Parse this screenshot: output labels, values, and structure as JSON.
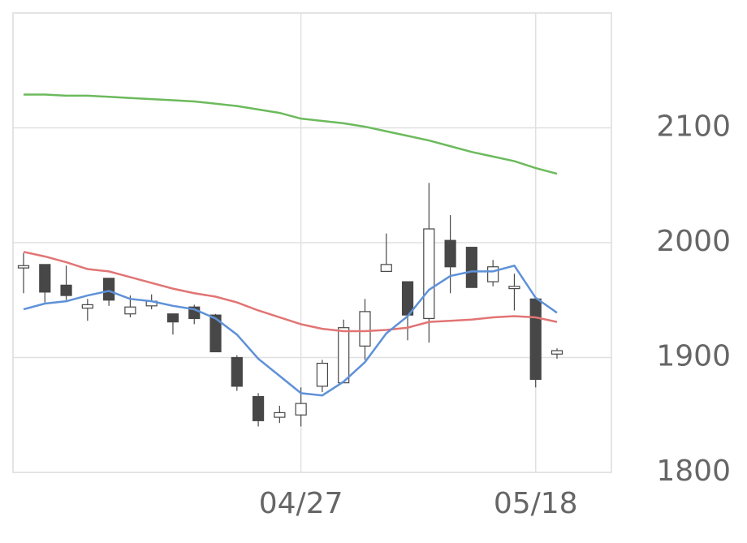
{
  "chart_data": {
    "type": "candlestick",
    "categories": [
      null,
      null,
      null,
      null,
      null,
      null,
      null,
      null,
      null,
      null,
      null,
      null,
      null,
      "04/27",
      null,
      null,
      null,
      null,
      null,
      null,
      null,
      null,
      null,
      null,
      "05/18",
      null
    ],
    "open": [
      1978,
      1981,
      1963,
      1943,
      1969,
      1938,
      1945,
      1938,
      1944,
      1937,
      1900,
      1866,
      1848,
      1850,
      1875,
      1878,
      1910,
      1975,
      1966,
      1934,
      2002,
      1996,
      1966,
      1960,
      1951,
      1903
    ],
    "high": [
      1991,
      1981,
      1980,
      1951,
      1969,
      1954,
      1955,
      1938,
      1946,
      1938,
      1902,
      1869,
      1858,
      1874,
      1898,
      1933,
      1951,
      2008,
      1966,
      2052,
      2024,
      1996,
      1985,
      1973,
      1951,
      1908
    ],
    "low": [
      1956,
      1948,
      1950,
      1932,
      1945,
      1935,
      1942,
      1920,
      1929,
      1905,
      1871,
      1840,
      1843,
      1840,
      1870,
      1878,
      1898,
      1975,
      1915,
      1913,
      1956,
      1961,
      1962,
      1941,
      1874,
      1899
    ],
    "close": [
      1980,
      1957,
      1954,
      1946,
      1950,
      1944,
      1949,
      1931,
      1934,
      1905,
      1875,
      1845,
      1852,
      1860,
      1895,
      1926,
      1940,
      1981,
      1937,
      2012,
      1979,
      1961,
      1979,
      1962,
      1881,
      1906
    ],
    "up_color": "#ffffff",
    "down_color": "#474747",
    "edge_color": "#474747",
    "lines": [
      {
        "color": "#6cba5c",
        "values": [
          2129,
          2129,
          2128,
          2128,
          2127,
          2126,
          2125,
          2124,
          2123,
          2121,
          2119,
          2116,
          2113,
          2108,
          2106,
          2104,
          2101,
          2097,
          2093,
          2089,
          2084,
          2079,
          2075,
          2071,
          2065,
          2060
        ]
      },
      {
        "color": "#e27474",
        "values": [
          1992,
          1988,
          1983,
          1977,
          1975,
          1970,
          1965,
          1960,
          1956,
          1953,
          1948,
          1941,
          1935,
          1929,
          1925,
          1923,
          1923,
          1924,
          1926,
          1931,
          1932,
          1933,
          1935,
          1936,
          1935,
          1931
        ]
      },
      {
        "color": "#5e91d8",
        "values": [
          1942,
          1947,
          1949,
          1954,
          1958,
          1951,
          1949,
          1945,
          1942,
          1934,
          1920,
          1899,
          1884,
          1869,
          1867,
          1879,
          1896,
          1921,
          1936,
          1959,
          1971,
          1975,
          1975,
          1980,
          1952,
          1939
        ]
      }
    ],
    "ylim": [
      1800,
      2200
    ],
    "yticks": [
      1800,
      1900,
      2000,
      2100
    ],
    "grid": true
  }
}
